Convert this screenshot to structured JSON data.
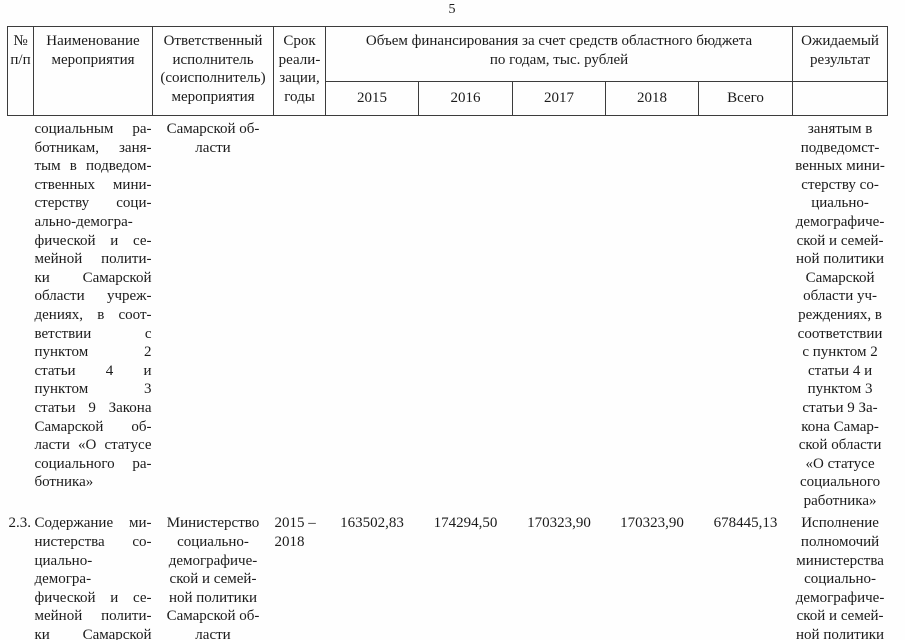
{
  "page": {
    "number": "5"
  },
  "table": {
    "header": {
      "col_num": "№\nп/п",
      "col_name": "Наименование\nмероприятия",
      "col_executor": "Ответственный\nисполнитель\n(соисполнитель)\nмероприятия",
      "col_term": "Срок\nреали-\nзации,\nгоды",
      "col_funding": "Объем финансирования за счет средств областного бюджета\nпо годам, тыс. рублей",
      "years": [
        "2015",
        "2016",
        "2017",
        "2018",
        "Всего"
      ],
      "col_result": "Ожидаемый\nрезультат"
    },
    "rows": [
      {
        "num": "",
        "name_lines": [
          "социальным ра-",
          "ботникам, заня-",
          "тым в подведом-",
          "ственных мини-",
          "стерству соци-",
          "ально-демогра-",
          "фической и се-",
          "мейной полити-",
          "ки Самарской",
          "области учреж-",
          "дениях, в соот-",
          "ветствии с",
          "пунктом 2",
          "статьи 4 и",
          "пунктом 3",
          "статьи 9 Закона",
          "Самарской об-",
          "ласти «О статусе",
          "социального ра-",
          "ботника»"
        ],
        "executor": "Самарской об-\nласти",
        "term": "",
        "values": [
          "",
          "",
          "",
          "",
          ""
        ],
        "result": "занятым в\nподведомст-\nвенных мини-\nстерству со-\nциально-\nдемографиче-\nской и семей-\nной политики\nСамарской\nобласти уч-\nреждениях, в\nсоответствии\nс пунктом 2\nстатьи 4 и\nпунктом 3\nстатьи 9 За-\nкона Самар-\nской области\n«О статусе\nсоциального\nработника»"
      },
      {
        "num": "2.3.",
        "name_lines": [
          "Содержание ми-",
          "нистерства со-",
          "циально-",
          "демогра-",
          "фической и се-",
          "мейной полити-",
          "ки Самарской"
        ],
        "executor": "Министерство\nсоциально-\nдемографиче-\nской и семей-\nной политики\nСамарской об-\nласти",
        "term": "2015 –\n2018",
        "values": [
          "163502,83",
          "174294,50",
          "170323,90",
          "170323,90",
          "678445,13"
        ],
        "result": "Исполнение\nполномочий\nминистерства\nсоциально-\nдемографиче-\nской и семей-\nной политики"
      }
    ]
  }
}
